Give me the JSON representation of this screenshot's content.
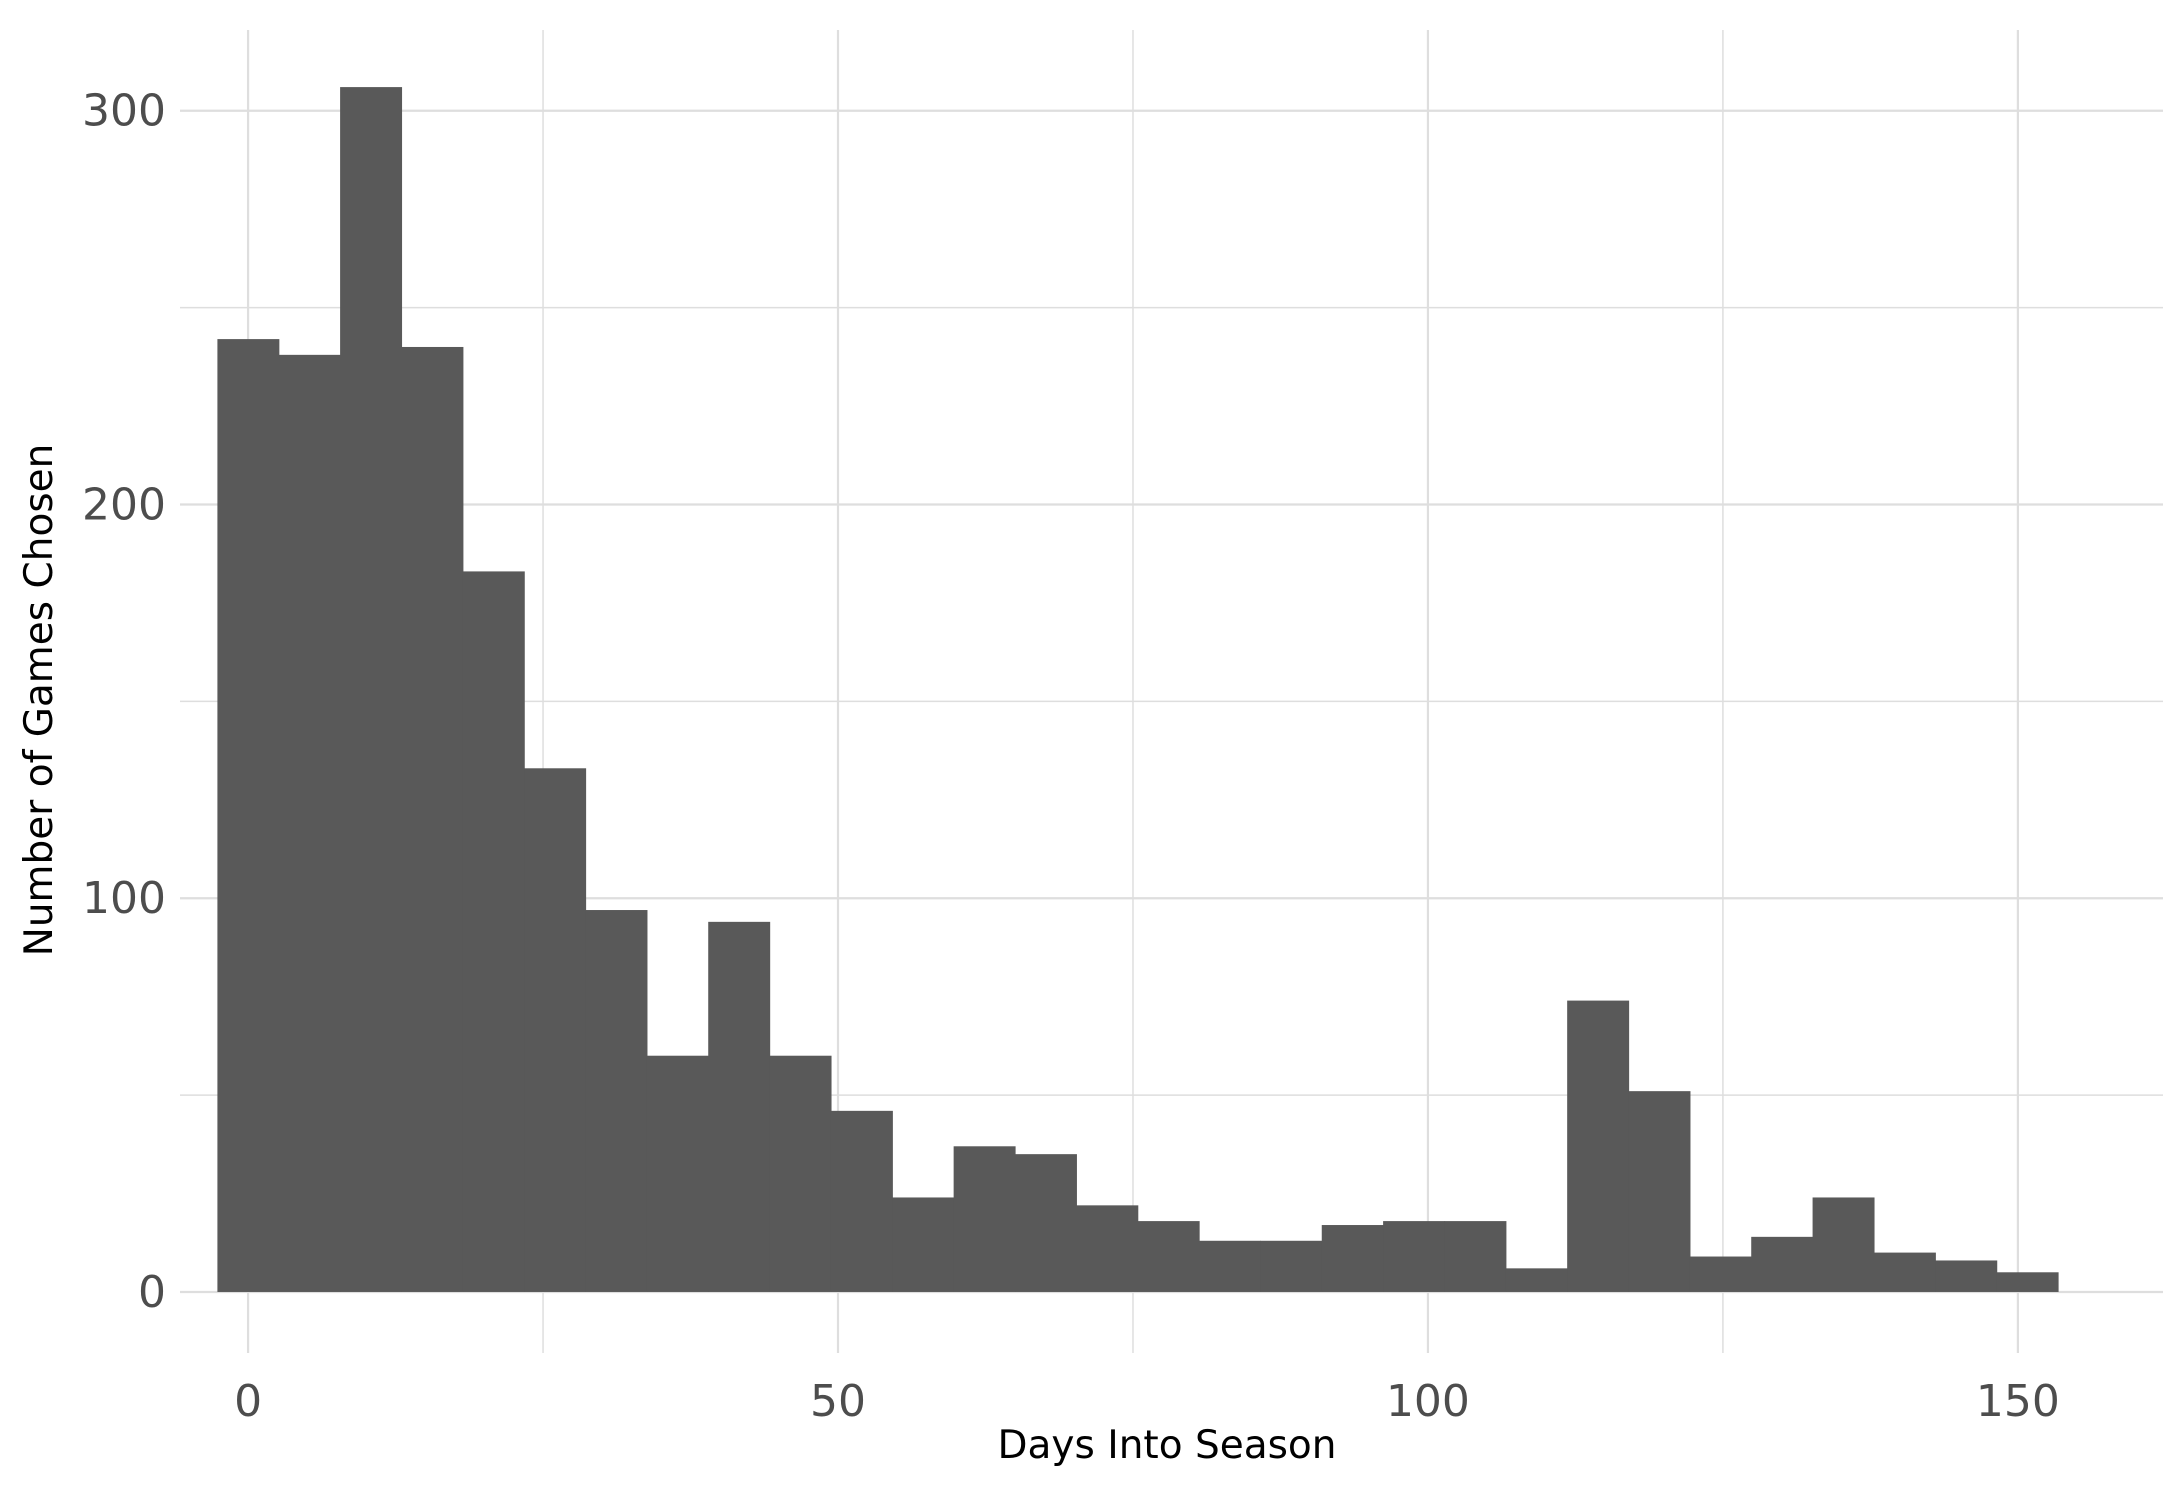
{
  "chart_data": {
    "type": "bar",
    "histogram": true,
    "title": "",
    "xlabel": "Days Into Season",
    "ylabel": "Number of Games Chosen",
    "xlim": [
      -5.77,
      162.3
    ],
    "ylim": [
      -15.5,
      320.5
    ],
    "x_ticks": [
      0,
      50,
      100,
      150
    ],
    "y_ticks": [
      0,
      100,
      200,
      300
    ],
    "x_minor_gridlines": [
      25,
      75,
      125
    ],
    "y_minor_gridlines": [
      50,
      150,
      250
    ],
    "grid": true,
    "bar_color": "#595959",
    "grid_color": "#dedede",
    "bin_edges": [
      -2.6,
      2.6,
      7.8,
      13.0,
      18.2,
      23.4,
      28.6,
      33.8,
      39.0,
      44.2,
      49.4,
      54.6,
      59.8,
      65.0,
      70.2,
      75.4,
      80.6,
      85.8,
      91.0,
      96.2,
      101.4,
      106.6,
      111.8,
      117.0,
      122.2,
      127.4,
      132.6,
      137.8,
      143.0,
      148.2,
      153.4
    ],
    "values": [
      242,
      238,
      306,
      240,
      183,
      133,
      97,
      60,
      94,
      60,
      46,
      24,
      37,
      35,
      22,
      18,
      13,
      13,
      17,
      18,
      18,
      6,
      74,
      51,
      9,
      14,
      24,
      10,
      8,
      5
    ]
  }
}
